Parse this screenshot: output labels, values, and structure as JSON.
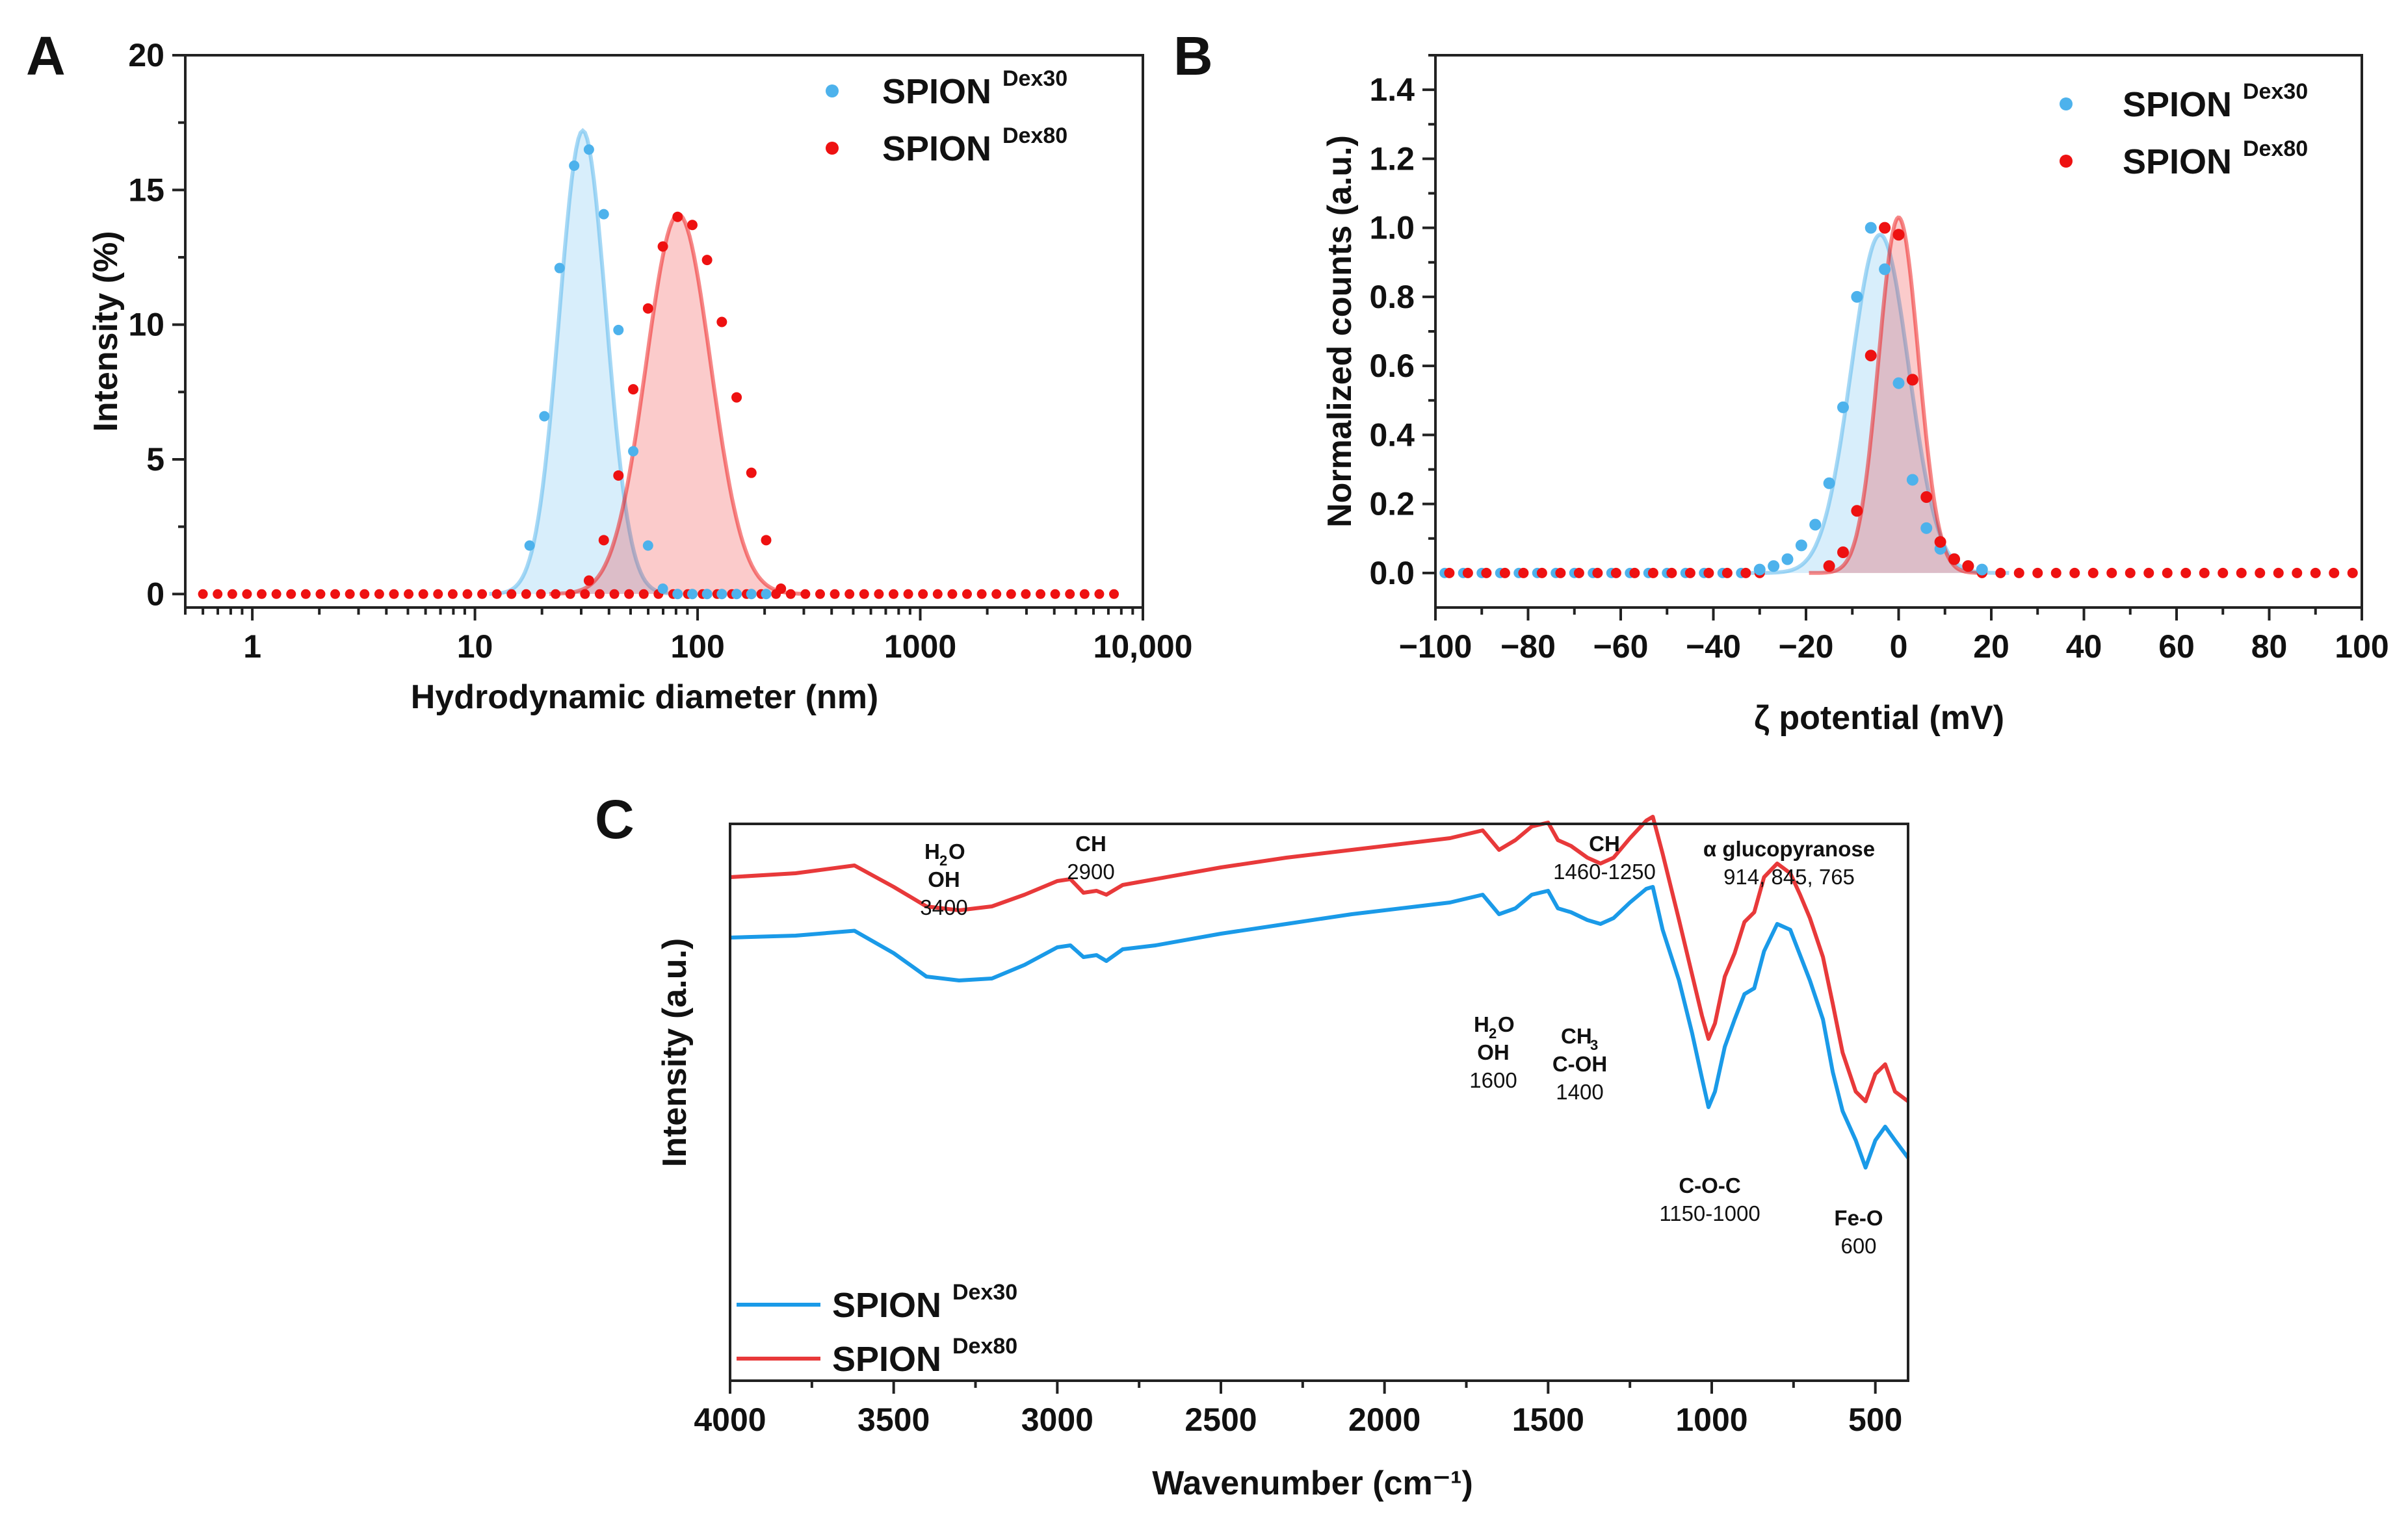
{
  "chart_data": [
    {
      "panel": "A",
      "type": "scatter",
      "xscale": "log",
      "xlim": [
        0.5,
        10000
      ],
      "ylim": [
        -0.5,
        20
      ],
      "xlabel": "Hydrodynamic diameter (nm)",
      "ylabel": "Intensity (%)",
      "xticks": [
        1,
        10,
        100,
        1000,
        10000
      ],
      "xtick_labels": [
        "1",
        "10",
        "100",
        "1000",
        "10,000"
      ],
      "yticks": [
        0,
        5,
        10,
        15,
        20
      ],
      "ytick_labels": [
        "0",
        "5",
        "10",
        "15",
        "20"
      ],
      "legend": [
        {
          "base": "SPION",
          "sup": "Dex30"
        },
        {
          "base": "SPION",
          "sup": "Dex80"
        }
      ],
      "series": [
        {
          "name": "SPION Dex30",
          "color": "#4db2ec",
          "fit": {
            "peak": 30.5,
            "amp": 17.2,
            "sigma": 0.105
          },
          "x": [
            17.6,
            20.5,
            24.0,
            27.9,
            32.5,
            37.9,
            44.1,
            51.4,
            59.9,
            69.8,
            81.3,
            94.7,
            110.3,
            128.5,
            149.7,
            174.4,
            203.2
          ],
          "y": [
            1.8,
            6.6,
            12.1,
            15.9,
            16.5,
            14.1,
            9.8,
            5.3,
            1.8,
            0.2,
            0,
            0,
            0,
            0,
            0,
            0,
            0
          ]
        },
        {
          "name": "SPION Dex80",
          "color": "#ee1111",
          "fit": {
            "peak": 82,
            "amp": 14.1,
            "sigma": 0.145
          },
          "x": [
            32.5,
            37.9,
            44.1,
            51.4,
            59.9,
            69.8,
            81.3,
            94.7,
            110.3,
            128.5,
            149.7,
            174.4,
            203.2,
            236.7
          ],
          "y": [
            0.5,
            2.0,
            4.4,
            7.6,
            10.6,
            12.9,
            14.0,
            13.7,
            12.4,
            10.1,
            7.3,
            4.5,
            2.0,
            0.2
          ]
        }
      ],
      "baseline_range": [
        0.6,
        8500
      ]
    },
    {
      "panel": "B",
      "type": "scatter",
      "xlim": [
        -100,
        100
      ],
      "ylim": [
        -0.1,
        1.5
      ],
      "xlabel": "ζ potential (mV)",
      "ylabel": "Normalized counts (a.u.)",
      "xticks": [
        -100,
        -80,
        -60,
        -40,
        -20,
        0,
        20,
        40,
        60,
        80,
        100
      ],
      "xtick_labels": [
        "−100",
        "−80",
        "−60",
        "−40",
        "−20",
        "0",
        "20",
        "40",
        "60",
        "80",
        "100"
      ],
      "yticks": [
        0,
        0.2,
        0.4,
        0.6,
        0.8,
        1.0,
        1.2,
        1.4
      ],
      "ytick_labels": [
        "0.0",
        "0.2",
        "0.4",
        "0.6",
        "0.8",
        "1.0",
        "1.2",
        "1.4"
      ],
      "legend": [
        {
          "base": "SPION",
          "sup": "Dex30"
        },
        {
          "base": "SPION",
          "sup": "Dex80"
        }
      ],
      "series": [
        {
          "name": "SPION Dex30",
          "color": "#4db2ec",
          "fit": {
            "center": -4,
            "amp": 0.98,
            "sigma": 6.2
          },
          "x": [
            -30,
            -27,
            -24,
            -21,
            -18,
            -15,
            -12,
            -9,
            -6,
            -3,
            0,
            3,
            6,
            9,
            12,
            15,
            18
          ],
          "y": [
            0.01,
            0.02,
            0.04,
            0.08,
            0.14,
            0.26,
            0.48,
            0.8,
            1.0,
            0.88,
            0.55,
            0.27,
            0.13,
            0.07,
            0.04,
            0.02,
            0.01
          ]
        },
        {
          "name": "SPION Dex80",
          "color": "#ee1111",
          "fit": {
            "center": 0,
            "amp": 1.03,
            "sigma": 4.3
          },
          "x": [
            -15,
            -12,
            -9,
            -6,
            -3,
            0,
            3,
            6,
            9,
            12,
            15
          ],
          "y": [
            0.02,
            0.06,
            0.18,
            0.63,
            1.0,
            0.98,
            0.56,
            0.22,
            0.09,
            0.04,
            0.02
          ]
        }
      ],
      "baseline_range": [
        -98,
        98
      ],
      "baseline_step": 4
    },
    {
      "panel": "C",
      "type": "line",
      "xlim": [
        4000,
        400
      ],
      "xlabel": "Wavenumber (cm⁻¹)",
      "ylabel": "Intensity (a.u.)",
      "xticks": [
        4000,
        3500,
        3000,
        2500,
        2000,
        1500,
        1000,
        500
      ],
      "xtick_labels": [
        "4000",
        "3500",
        "3000",
        "2500",
        "2000",
        "1500",
        "1000",
        "500"
      ],
      "legend": [
        {
          "base": "SPION",
          "sup": "Dex30"
        },
        {
          "base": "SPION",
          "sup": "Dex80"
        }
      ],
      "series": [
        {
          "name": "SPION Dex30",
          "color": "#1a9ae8",
          "x": [
            4000,
            3800,
            3620,
            3500,
            3400,
            3300,
            3200,
            3100,
            3000,
            2960,
            2920,
            2880,
            2850,
            2800,
            2700,
            2500,
            2300,
            2100,
            1900,
            1800,
            1700,
            1650,
            1600,
            1550,
            1500,
            1470,
            1430,
            1380,
            1340,
            1300,
            1250,
            1200,
            1180,
            1150,
            1100,
            1060,
            1030,
            1010,
            990,
            960,
            930,
            900,
            870,
            840,
            800,
            760,
            730,
            700,
            660,
            630,
            600,
            560,
            530,
            500,
            470,
            440,
            400
          ],
          "y": [
            0.34,
            0.35,
            0.375,
            0.26,
            0.14,
            0.12,
            0.13,
            0.2,
            0.29,
            0.3,
            0.24,
            0.25,
            0.22,
            0.28,
            0.3,
            0.36,
            0.41,
            0.46,
            0.5,
            0.52,
            0.56,
            0.46,
            0.49,
            0.56,
            0.58,
            0.49,
            0.47,
            0.43,
            0.41,
            0.44,
            0.52,
            0.59,
            0.6,
            0.38,
            0.12,
            -0.15,
            -0.38,
            -0.53,
            -0.45,
            -0.22,
            -0.08,
            0.05,
            0.08,
            0.27,
            0.41,
            0.38,
            0.25,
            0.12,
            -0.08,
            -0.35,
            -0.55,
            -0.7,
            -0.84,
            -0.7,
            -0.63,
            -0.7,
            -0.79
          ]
        },
        {
          "name": "SPION Dex80",
          "color": "#e8393a",
          "x": [
            4000,
            3800,
            3620,
            3500,
            3400,
            3300,
            3200,
            3100,
            3000,
            2960,
            2920,
            2880,
            2850,
            2800,
            2700,
            2500,
            2300,
            2100,
            1900,
            1800,
            1700,
            1650,
            1600,
            1550,
            1500,
            1470,
            1430,
            1380,
            1340,
            1300,
            1250,
            1200,
            1180,
            1150,
            1100,
            1060,
            1030,
            1010,
            990,
            960,
            930,
            900,
            870,
            840,
            800,
            760,
            730,
            700,
            660,
            630,
            600,
            560,
            530,
            500,
            470,
            440,
            400
          ],
          "y": [
            0.65,
            0.67,
            0.71,
            0.6,
            0.5,
            0.48,
            0.5,
            0.56,
            0.63,
            0.64,
            0.57,
            0.58,
            0.56,
            0.61,
            0.64,
            0.7,
            0.75,
            0.79,
            0.83,
            0.85,
            0.89,
            0.79,
            0.84,
            0.91,
            0.93,
            0.84,
            0.81,
            0.75,
            0.72,
            0.75,
            0.85,
            0.94,
            0.96,
            0.77,
            0.43,
            0.15,
            -0.06,
            -0.18,
            -0.1,
            0.14,
            0.26,
            0.42,
            0.47,
            0.65,
            0.72,
            0.67,
            0.56,
            0.44,
            0.24,
            0.0,
            -0.25,
            -0.45,
            -0.5,
            -0.36,
            -0.31,
            -0.45,
            -0.5
          ]
        }
      ],
      "annotations": [
        {
          "id": "h2o-3400",
          "lines": [
            {
              "text": "H",
              "sub": "2",
              "rest": "O",
              "bold": true
            },
            {
              "text": "OH",
              "bold": true
            },
            {
              "text": "3400",
              "bold": false
            }
          ]
        },
        {
          "id": "ch-2900",
          "lines": [
            {
              "text": "CH",
              "bold": true
            },
            {
              "text": "2900",
              "bold": false
            }
          ]
        },
        {
          "id": "ch-1460",
          "lines": [
            {
              "text": "CH",
              "bold": true
            },
            {
              "text": "1460-1250",
              "bold": false
            }
          ]
        },
        {
          "id": "glucopyranose",
          "lines": [
            {
              "text": "α glucopyranose",
              "bold": true
            },
            {
              "text": "914, 845, 765",
              "bold": false
            }
          ]
        },
        {
          "id": "h2o-1600",
          "lines": [
            {
              "text": "H",
              "sub": "2",
              "rest": "O",
              "bold": true
            },
            {
              "text": "OH",
              "bold": true
            },
            {
              "text": "1600",
              "bold": false
            }
          ]
        },
        {
          "id": "ch3-1400",
          "lines": [
            {
              "text": "CH",
              "sub": "3",
              "rest": "",
              "bold": true
            },
            {
              "text": "C-OH",
              "bold": true
            },
            {
              "text": "1400",
              "bold": false
            }
          ]
        },
        {
          "id": "coc",
          "lines": [
            {
              "text": "C-O-C",
              "bold": true
            },
            {
              "text": "1150-1000",
              "bold": false
            }
          ]
        },
        {
          "id": "feo",
          "lines": [
            {
              "text": "Fe-O",
              "bold": true
            },
            {
              "text": "600",
              "bold": false
            }
          ]
        }
      ]
    }
  ],
  "panel_letters": [
    "A",
    "B",
    "C"
  ]
}
